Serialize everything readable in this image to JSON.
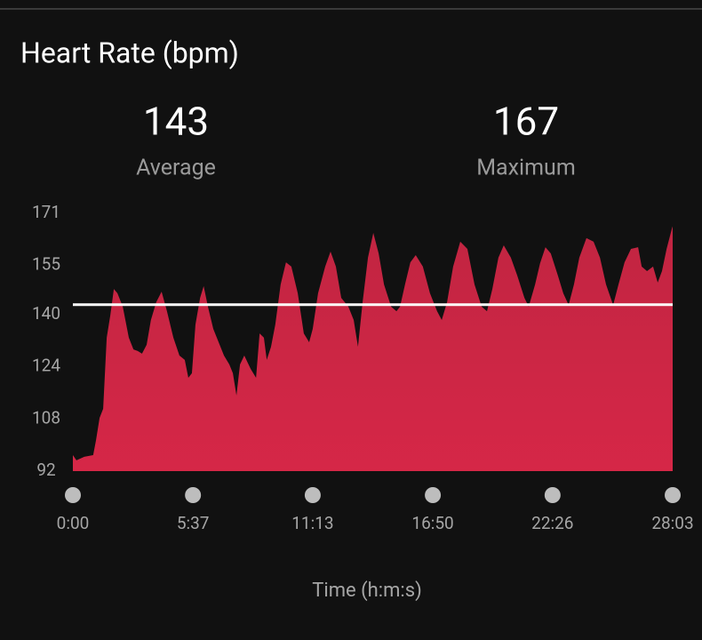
{
  "title": "Heart Rate (bpm)",
  "summary": [
    {
      "value": 143,
      "label": "Average"
    },
    {
      "value": 167,
      "label": "Maximum"
    }
  ],
  "chart_data": {
    "type": "area",
    "x_label": "Time (h:m:s)",
    "color": "#e0284a",
    "line_color": "#ffffff",
    "x": [
      0,
      10,
      32,
      57,
      65,
      75,
      85,
      95,
      105,
      115,
      125,
      140,
      157,
      170,
      182,
      194,
      207,
      219,
      234,
      249,
      264,
      282,
      299,
      314,
      324,
      334,
      344,
      357,
      367,
      379,
      394,
      409,
      424,
      439,
      449,
      459,
      469,
      481,
      499,
      514,
      524,
      536,
      544,
      556,
      568,
      583,
      598,
      613,
      631,
      648,
      663,
      673,
      688,
      708,
      723,
      738,
      753,
      773,
      788,
      800,
      813,
      828,
      843,
      858,
      873,
      893,
      908,
      918,
      932,
      947,
      962,
      982,
      1002,
      1022,
      1035,
      1050,
      1067,
      1087,
      1107,
      1127,
      1147,
      1162,
      1177,
      1194,
      1209,
      1229,
      1247,
      1267,
      1279,
      1297,
      1311,
      1326,
      1341,
      1361,
      1376,
      1391,
      1406,
      1421,
      1441,
      1461,
      1479,
      1496,
      1516,
      1531,
      1548,
      1566,
      1586,
      1596,
      1611,
      1628,
      1641,
      1653,
      1666,
      1681,
      1683
    ],
    "values": [
      96.9,
      95.3,
      96.4,
      96.9,
      101.5,
      108.3,
      111.1,
      132.9,
      139.7,
      147.8,
      146.5,
      142.4,
      132.9,
      129.3,
      128.8,
      128.0,
      130.7,
      138.3,
      143.8,
      147.0,
      141.0,
      132.9,
      127.4,
      126.1,
      120.6,
      122.0,
      136.9,
      145.1,
      148.7,
      142.4,
      135.6,
      131.5,
      127.4,
      124.7,
      122.0,
      115.2,
      124.7,
      127.4,
      123.3,
      120.6,
      134.2,
      132.9,
      126.1,
      130.1,
      136.9,
      149.2,
      156.0,
      154.7,
      146.5,
      134.2,
      131.5,
      135.6,
      146.5,
      154.7,
      159.3,
      154.7,
      145.1,
      142.4,
      138.3,
      130.1,
      143.8,
      157.4,
      165.0,
      158.7,
      149.2,
      142.4,
      141.0,
      142.4,
      149.2,
      156.0,
      158.2,
      154.7,
      146.5,
      141.0,
      138.3,
      143.8,
      154.7,
      162.3,
      160.1,
      149.2,
      142.4,
      141.0,
      147.8,
      157.4,
      161.2,
      157.4,
      151.9,
      145.1,
      142.4,
      149.2,
      155.7,
      160.6,
      158.7,
      151.9,
      146.5,
      142.9,
      149.2,
      157.4,
      163.4,
      162.3,
      157.4,
      149.2,
      142.9,
      149.2,
      156.0,
      160.1,
      160.6,
      154.7,
      153.3,
      154.7,
      149.8,
      153.3,
      160.1,
      166.4,
      167
    ],
    "xlim": [
      0,
      1683
    ],
    "xticks": [
      {
        "value": 0,
        "label": "0:00"
      },
      {
        "value": 337,
        "label": "5:37"
      },
      {
        "value": 673,
        "label": "11:13"
      },
      {
        "value": 1010,
        "label": "16:50"
      },
      {
        "value": 1346,
        "label": "22:26"
      },
      {
        "value": 1683,
        "label": "28:03"
      }
    ],
    "ylim": [
      92,
      171
    ],
    "yticks": [
      92,
      108,
      124,
      140,
      155,
      171
    ]
  }
}
